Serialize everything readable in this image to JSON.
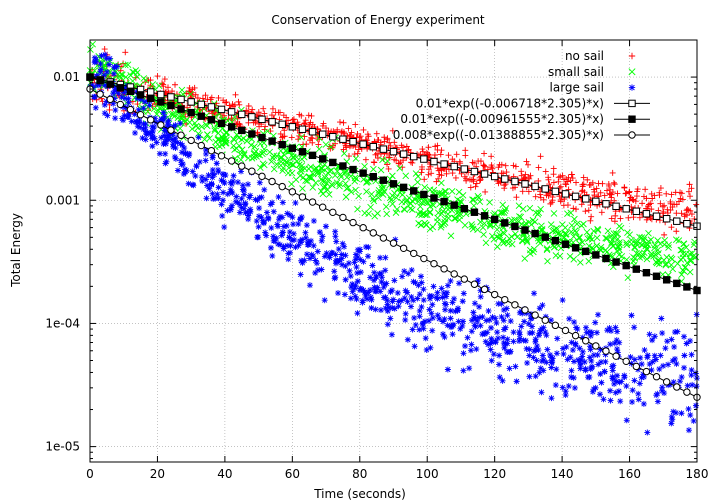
{
  "chart_data": {
    "type": "scatter",
    "title": "Conservation of Energy experiment",
    "xlabel": "Time (seconds)",
    "ylabel": "Total Energy",
    "xlim": [
      0,
      180
    ],
    "ylim": [
      7.5e-06,
      0.02
    ],
    "yscale": "log",
    "grid": true,
    "legend_position": "top-right",
    "x_ticks": [
      {
        "value": 0,
        "label": "0"
      },
      {
        "value": 20,
        "label": "20"
      },
      {
        "value": 40,
        "label": "40"
      },
      {
        "value": 60,
        "label": "60"
      },
      {
        "value": 80,
        "label": "80"
      },
      {
        "value": 100,
        "label": "100"
      },
      {
        "value": 120,
        "label": "120"
      },
      {
        "value": 140,
        "label": "140"
      },
      {
        "value": 160,
        "label": "160"
      },
      {
        "value": 180,
        "label": "180"
      }
    ],
    "y_ticks": [
      {
        "value": 0.01,
        "label": "0.01"
      },
      {
        "value": 0.001,
        "label": "0.001"
      },
      {
        "value": 0.0001,
        "label": "1e-04"
      },
      {
        "value": 1e-05,
        "label": "1e-05"
      }
    ],
    "series": [
      {
        "name": "no sail",
        "kind": "points",
        "marker": "plus",
        "color": "#ff0000",
        "x": [
          0,
          20,
          40,
          60,
          80,
          100,
          120,
          140,
          160,
          180
        ],
        "y": [
          0.01,
          0.0074,
          0.0053,
          0.0039,
          0.0029,
          0.0021,
          0.0016,
          0.0012,
          0.00095,
          0.0008
        ],
        "spread": [
          1.6,
          1.35,
          1.3,
          1.3,
          1.3,
          1.3,
          1.35,
          1.4,
          1.45,
          1.5
        ]
      },
      {
        "name": "small sail",
        "kind": "points",
        "marker": "cross",
        "color": "#00ff00",
        "x": [
          0,
          20,
          40,
          60,
          80,
          100,
          120,
          140,
          160,
          180
        ],
        "y": [
          0.013,
          0.006,
          0.0035,
          0.0021,
          0.0014,
          0.00095,
          0.00068,
          0.0005,
          0.0004,
          0.00031
        ],
        "spread": [
          1.6,
          1.4,
          1.5,
          1.55,
          1.55,
          1.55,
          1.55,
          1.5,
          1.5,
          1.55
        ]
      },
      {
        "name": "large sail",
        "kind": "points",
        "marker": "star",
        "color": "#0000ff",
        "x": [
          0,
          20,
          40,
          60,
          80,
          100,
          120,
          140,
          160,
          180
        ],
        "y": [
          0.012,
          0.0035,
          0.0012,
          0.0005,
          0.00025,
          0.00013,
          8.5e-05,
          6e-05,
          4.5e-05,
          3.5e-05
        ],
        "spread": [
          1.7,
          1.5,
          1.65,
          1.8,
          1.9,
          2.0,
          2.0,
          2.1,
          2.3,
          2.8
        ]
      },
      {
        "name": "0.01*exp((-0.006718*2.305)*x)",
        "kind": "function",
        "marker": "open-square",
        "color": "#000000",
        "a": 0.01,
        "k": -0.006718,
        "c": 2.305
      },
      {
        "name": "0.01*exp((-0.00961555*2.305)*x)",
        "kind": "function",
        "marker": "filled-square",
        "color": "#000000",
        "a": 0.01,
        "k": -0.00961555,
        "c": 2.305
      },
      {
        "name": "0.008*exp((-0.01388855*2.305)*x)",
        "kind": "function",
        "marker": "open-circle",
        "color": "#000000",
        "a": 0.008,
        "k": -0.01388855,
        "c": 2.305
      }
    ]
  }
}
